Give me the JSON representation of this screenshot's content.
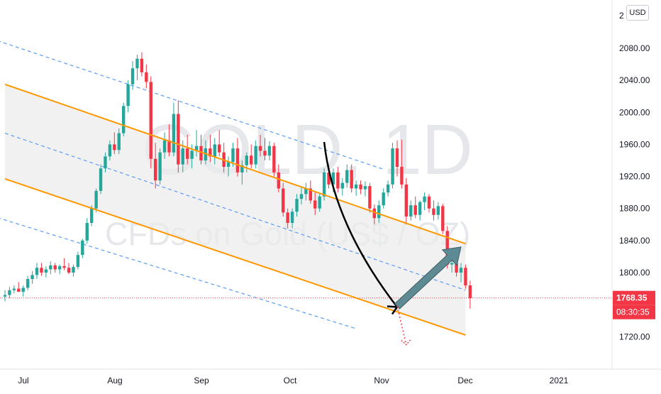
{
  "currency": "USD",
  "watermark": {
    "symbol": "GOLD, 1D",
    "description": "CFDs on Gold (US$ / OZ)"
  },
  "price_labels": {
    "last_price": "1768.35",
    "countdown": "08:30:35",
    "last_price_color": "#f23645",
    "top_partial": "2"
  },
  "colors": {
    "up": "#26a69a",
    "down": "#f23645",
    "channel": "#ff9800",
    "dashed": "#5b9cf6",
    "arrow": "#5d8a93",
    "curve": "#000000",
    "channel_fill": "#ebebeb"
  },
  "chart_data": {
    "type": "candlestick",
    "y_ticks": [
      "2080.00",
      "2040.00",
      "2000.00",
      "1960.00",
      "1920.00",
      "1880.00",
      "1840.00",
      "1800.00",
      "1720.00"
    ],
    "y_tick_values": [
      2080,
      2040,
      2000,
      1960,
      1920,
      1880,
      1840,
      1800,
      1720
    ],
    "x_ticks": [
      "Jul",
      "Aug",
      "Sep",
      "Oct",
      "Nov",
      "Dec",
      "2021"
    ],
    "ylim": [
      1698,
      2125
    ],
    "last_price": 1768.35,
    "candles": [
      [
        1770,
        1778,
        1764,
        1772
      ],
      [
        1772,
        1782,
        1768,
        1778
      ],
      [
        1778,
        1784,
        1774,
        1780
      ],
      [
        1780,
        1788,
        1776,
        1776
      ],
      [
        1776,
        1784,
        1770,
        1781
      ],
      [
        1781,
        1796,
        1778,
        1792
      ],
      [
        1792,
        1802,
        1786,
        1797
      ],
      [
        1797,
        1812,
        1792,
        1806
      ],
      [
        1806,
        1812,
        1796,
        1800
      ],
      [
        1800,
        1808,
        1794,
        1804
      ],
      [
        1804,
        1814,
        1798,
        1809
      ],
      [
        1809,
        1812,
        1800,
        1804
      ],
      [
        1804,
        1810,
        1798,
        1808
      ],
      [
        1808,
        1818,
        1803,
        1806
      ],
      [
        1806,
        1812,
        1798,
        1800
      ],
      [
        1800,
        1810,
        1795,
        1807
      ],
      [
        1807,
        1826,
        1804,
        1822
      ],
      [
        1822,
        1842,
        1818,
        1840
      ],
      [
        1840,
        1868,
        1836,
        1862
      ],
      [
        1862,
        1884,
        1858,
        1880
      ],
      [
        1880,
        1905,
        1875,
        1902
      ],
      [
        1902,
        1935,
        1898,
        1930
      ],
      [
        1930,
        1950,
        1925,
        1945
      ],
      [
        1945,
        1965,
        1940,
        1960
      ],
      [
        1960,
        1975,
        1948,
        1953
      ],
      [
        1953,
        1980,
        1948,
        1974
      ],
      [
        1974,
        2012,
        1970,
        2008
      ],
      [
        2008,
        2040,
        2000,
        2035
      ],
      [
        2035,
        2064,
        2028,
        2055
      ],
      [
        2055,
        2072,
        2040,
        2067
      ],
      [
        2067,
        2075,
        2045,
        2050
      ],
      [
        2050,
        2060,
        2030,
        2038
      ],
      [
        2038,
        2045,
        1930,
        1942
      ],
      [
        1942,
        1962,
        1905,
        1915
      ],
      [
        1915,
        1955,
        1910,
        1950
      ],
      [
        1950,
        1975,
        1942,
        1965
      ],
      [
        1965,
        1985,
        1945,
        1950
      ],
      [
        1950,
        2012,
        1945,
        1998
      ],
      [
        1998,
        2015,
        1925,
        1935
      ],
      [
        1935,
        1965,
        1925,
        1955
      ],
      [
        1955,
        1972,
        1935,
        1942
      ],
      [
        1942,
        1960,
        1930,
        1952
      ],
      [
        1952,
        1978,
        1945,
        1958
      ],
      [
        1958,
        1972,
        1935,
        1940
      ],
      [
        1940,
        1965,
        1935,
        1955
      ],
      [
        1955,
        1972,
        1938,
        1945
      ],
      [
        1945,
        1968,
        1935,
        1960
      ],
      [
        1960,
        1978,
        1945,
        1950
      ],
      [
        1950,
        1962,
        1925,
        1932
      ],
      [
        1932,
        1945,
        1920,
        1938
      ],
      [
        1938,
        1962,
        1932,
        1955
      ],
      [
        1955,
        1968,
        1920,
        1925
      ],
      [
        1925,
        1940,
        1910,
        1934
      ],
      [
        1934,
        1950,
        1925,
        1946
      ],
      [
        1946,
        1960,
        1930,
        1935
      ],
      [
        1935,
        1965,
        1930,
        1958
      ],
      [
        1958,
        1972,
        1945,
        1952
      ],
      [
        1952,
        1968,
        1940,
        1946
      ],
      [
        1946,
        1964,
        1940,
        1958
      ],
      [
        1958,
        1962,
        1920,
        1925
      ],
      [
        1925,
        1935,
        1900,
        1905
      ],
      [
        1905,
        1912,
        1870,
        1875
      ],
      [
        1875,
        1880,
        1855,
        1862
      ],
      [
        1862,
        1880,
        1855,
        1876
      ],
      [
        1876,
        1898,
        1870,
        1892
      ],
      [
        1892,
        1906,
        1885,
        1898
      ],
      [
        1898,
        1912,
        1890,
        1905
      ],
      [
        1905,
        1915,
        1886,
        1890
      ],
      [
        1890,
        1900,
        1872,
        1880
      ],
      [
        1880,
        1898,
        1876,
        1895
      ],
      [
        1895,
        1930,
        1890,
        1925
      ],
      [
        1925,
        1935,
        1905,
        1910
      ],
      [
        1910,
        1930,
        1900,
        1925
      ],
      [
        1925,
        1932,
        1900,
        1905
      ],
      [
        1905,
        1918,
        1896,
        1912
      ],
      [
        1912,
        1935,
        1906,
        1928
      ],
      [
        1928,
        1935,
        1900,
        1905
      ],
      [
        1905,
        1915,
        1896,
        1910
      ],
      [
        1910,
        1915,
        1898,
        1904
      ],
      [
        1904,
        1914,
        1895,
        1908
      ],
      [
        1908,
        1912,
        1875,
        1880
      ],
      [
        1880,
        1885,
        1860,
        1868
      ],
      [
        1868,
        1890,
        1862,
        1884
      ],
      [
        1884,
        1905,
        1880,
        1900
      ],
      [
        1900,
        1915,
        1895,
        1910
      ],
      [
        1910,
        1962,
        1905,
        1955
      ],
      [
        1955,
        1965,
        1920,
        1932
      ],
      [
        1932,
        1966,
        1905,
        1910
      ],
      [
        1910,
        1918,
        1860,
        1870
      ],
      [
        1870,
        1890,
        1865,
        1884
      ],
      [
        1884,
        1895,
        1868,
        1872
      ],
      [
        1872,
        1890,
        1865,
        1888
      ],
      [
        1888,
        1900,
        1878,
        1895
      ],
      [
        1895,
        1898,
        1875,
        1880
      ],
      [
        1880,
        1890,
        1865,
        1872
      ],
      [
        1872,
        1888,
        1866,
        1883
      ],
      [
        1883,
        1886,
        1848,
        1852
      ],
      [
        1852,
        1858,
        1805,
        1810
      ],
      [
        1810,
        1818,
        1800,
        1812
      ],
      [
        1812,
        1815,
        1795,
        1800
      ],
      [
        1800,
        1812,
        1788,
        1806
      ],
      [
        1806,
        1810,
        1780,
        1784
      ],
      [
        1784,
        1790,
        1755,
        1768
      ]
    ],
    "upper_channel": [
      [
        0,
        2035
      ],
      [
        101,
        1836
      ]
    ],
    "lower_channel": [
      [
        0,
        1917
      ],
      [
        101,
        1722
      ]
    ],
    "dashed_lines": [
      {
        "name": "upper-dashed",
        "points": [
          [
            -3,
            2092
          ],
          [
            83,
            1929
          ]
        ]
      },
      {
        "name": "mid-dashed",
        "points": [
          [
            0,
            1974
          ],
          [
            101,
            1778
          ]
        ]
      },
      {
        "name": "lower-dashed",
        "points": [
          [
            -7,
            1878
          ],
          [
            77,
            1730
          ]
        ]
      }
    ],
    "projection_arrow": {
      "from": [
        86,
        1758
      ],
      "to": [
        100,
        1832
      ]
    },
    "curve_arrow": {
      "points": [
        [
          70,
          1963
        ],
        [
          72,
          1860
        ],
        [
          86,
          1757
        ]
      ]
    },
    "dotted_projection": {
      "from": [
        86,
        1758
      ],
      "to": [
        88,
        1710
      ]
    }
  }
}
